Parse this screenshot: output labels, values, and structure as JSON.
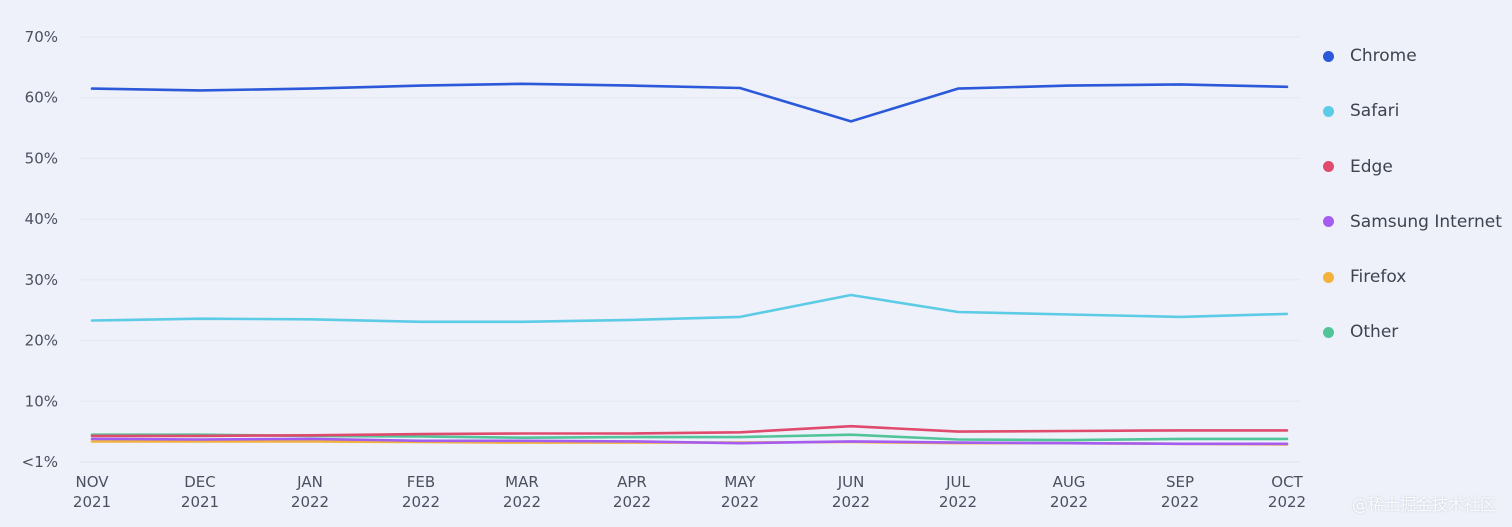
{
  "chart_data": {
    "type": "line",
    "categories": [
      [
        "NOV",
        "2021"
      ],
      [
        "DEC",
        "2021"
      ],
      [
        "JAN",
        "2022"
      ],
      [
        "FEB",
        "2022"
      ],
      [
        "MAR",
        "2022"
      ],
      [
        "APR",
        "2022"
      ],
      [
        "MAY",
        "2022"
      ],
      [
        "JUN",
        "2022"
      ],
      [
        "JUL",
        "2022"
      ],
      [
        "AUG",
        "2022"
      ],
      [
        "SEP",
        "2022"
      ],
      [
        "OCT",
        "2022"
      ]
    ],
    "y_ticks": [
      {
        "value": 0,
        "label": "<1%"
      },
      {
        "value": 10,
        "label": "10%"
      },
      {
        "value": 20,
        "label": "20%"
      },
      {
        "value": 30,
        "label": "30%"
      },
      {
        "value": 40,
        "label": "40%"
      },
      {
        "value": 50,
        "label": "50%"
      },
      {
        "value": 60,
        "label": "60%"
      },
      {
        "value": 70,
        "label": "70%"
      }
    ],
    "ylim": [
      0,
      70
    ],
    "grid": true,
    "legend_position": "right",
    "series": [
      {
        "name": "Chrome",
        "color": "#2b59d9",
        "values": [
          61.5,
          61.2,
          61.5,
          62.0,
          62.3,
          62.0,
          61.6,
          56.1,
          61.5,
          62.0,
          62.2,
          61.8
        ]
      },
      {
        "name": "Safari",
        "color": "#5ccbe6",
        "values": [
          23.3,
          23.6,
          23.5,
          23.1,
          23.1,
          23.4,
          23.9,
          27.5,
          24.7,
          24.3,
          23.9,
          24.4
        ]
      },
      {
        "name": "Edge",
        "color": "#e04a6d",
        "values": [
          4.3,
          4.3,
          4.4,
          4.6,
          4.7,
          4.7,
          4.9,
          5.9,
          5.0,
          5.1,
          5.2,
          5.2
        ]
      },
      {
        "name": "Samsung Internet",
        "color": "#a55cf0",
        "values": [
          3.8,
          3.7,
          3.8,
          3.5,
          3.5,
          3.4,
          3.1,
          3.4,
          3.2,
          3.1,
          3.0,
          3.0
        ]
      },
      {
        "name": "Firefox",
        "color": "#f2b23c",
        "values": [
          3.4,
          3.4,
          3.4,
          3.3,
          3.2,
          3.2,
          3.2,
          3.3,
          3.1,
          3.1,
          3.0,
          2.9
        ]
      },
      {
        "name": "Other",
        "color": "#52c49a",
        "values": [
          4.5,
          4.5,
          4.3,
          4.2,
          4.0,
          4.1,
          4.1,
          4.5,
          3.7,
          3.6,
          3.8,
          3.8
        ]
      }
    ]
  },
  "watermark": "@稀土掘金技术社区"
}
